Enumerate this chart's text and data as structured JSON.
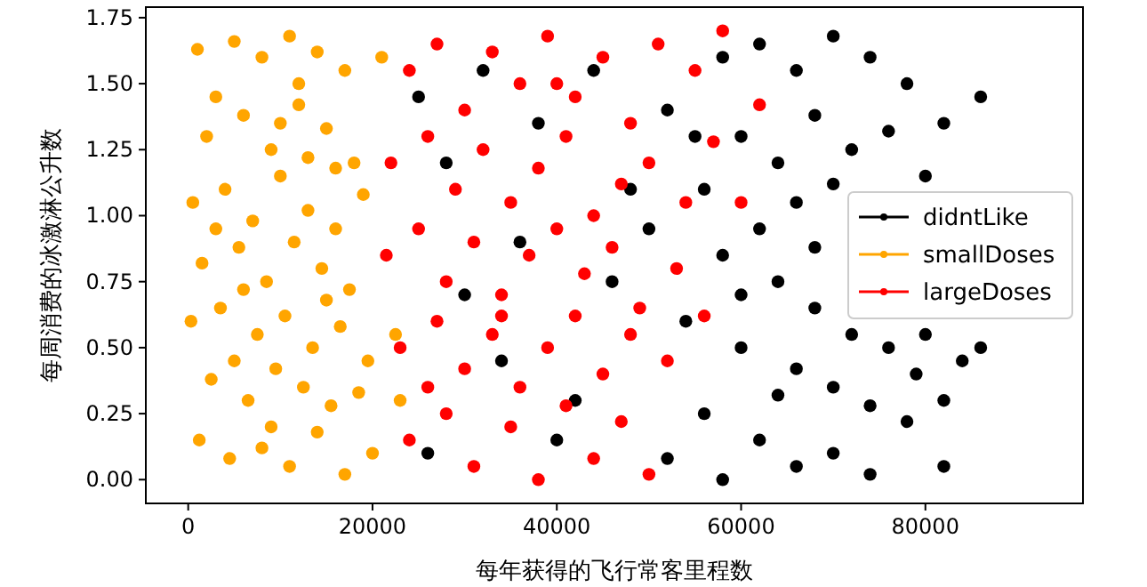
{
  "chart_data": {
    "type": "scatter",
    "xlabel": "每年获得的飞行常客里程数",
    "ylabel": "每周消费的冰激淋公升数",
    "xlim": [
      -4600,
      97100
    ],
    "ylim": [
      -0.09,
      1.79
    ],
    "xticks": [
      0,
      20000,
      40000,
      60000,
      80000
    ],
    "yticks": [
      {
        "value": 0,
        "label": "0.00"
      },
      {
        "value": 0.25,
        "label": "0.25"
      },
      {
        "value": 0.5,
        "label": "0.50"
      },
      {
        "value": 0.75,
        "label": "0.75"
      },
      {
        "value": 1,
        "label": "1.00"
      },
      {
        "value": 1.25,
        "label": "1.25"
      },
      {
        "value": 1.5,
        "label": "1.50"
      },
      {
        "value": 1.75,
        "label": "1.75"
      }
    ],
    "legend": "right",
    "marker": "circle",
    "grid": false,
    "series": [
      {
        "name": "didntLike",
        "color": "#000000",
        "x": [
          25000,
          28000,
          32000,
          38000,
          44000,
          48000,
          52000,
          58000,
          62000,
          66000,
          70000,
          74000,
          78000,
          82000,
          86000,
          60000,
          64000,
          68000,
          72000,
          76000,
          80000,
          56000,
          62000,
          66000,
          70000,
          58000,
          64000,
          68000,
          72000,
          76000,
          80000,
          84000,
          54000,
          60000,
          66000,
          70000,
          74000,
          78000,
          82000,
          56000,
          62000,
          66000,
          70000,
          74000,
          58000,
          52000,
          30000,
          36000,
          42000,
          46000,
          26000,
          34000,
          40000,
          50000,
          55000,
          60000,
          68000,
          64000,
          79000,
          86000,
          82000
        ],
        "values": [
          1.45,
          1.2,
          1.55,
          1.35,
          1.55,
          1.1,
          1.4,
          1.6,
          1.65,
          1.55,
          1.68,
          1.6,
          1.5,
          1.35,
          1.45,
          1.3,
          1.2,
          1.38,
          1.25,
          1.32,
          1.15,
          1.1,
          0.95,
          1.05,
          1.12,
          0.85,
          0.75,
          0.88,
          0.55,
          0.5,
          0.55,
          0.45,
          0.6,
          0.5,
          0.42,
          0.35,
          0.28,
          0.22,
          0.3,
          0.25,
          0.15,
          0.05,
          0.1,
          0.02,
          0.0,
          0.08,
          0.7,
          0.9,
          0.3,
          0.75,
          0.1,
          0.45,
          0.15,
          0.95,
          1.3,
          0.7,
          0.65,
          0.32,
          0.4,
          0.5,
          0.05
        ]
      },
      {
        "name": "smallDoses",
        "color": "#ffa500",
        "x": [
          1000,
          3000,
          5000,
          8000,
          11000,
          14000,
          17000,
          2000,
          6000,
          9000,
          12000,
          15000,
          18000,
          500,
          4000,
          7000,
          10000,
          13000,
          16000,
          19000,
          1500,
          5500,
          8500,
          11500,
          14500,
          17500,
          300,
          3500,
          7500,
          10500,
          13500,
          16500,
          19500,
          2500,
          6500,
          9500,
          12500,
          15500,
          18500,
          1200,
          4500,
          8000,
          11000,
          14000,
          17000,
          20000,
          6000,
          12000,
          3000,
          16000,
          9000,
          21000,
          22500,
          23000,
          10000,
          5000,
          15000,
          13000
        ],
        "values": [
          1.63,
          1.45,
          1.66,
          1.6,
          1.68,
          1.62,
          1.55,
          1.3,
          1.38,
          1.25,
          1.42,
          1.33,
          1.2,
          1.05,
          1.1,
          0.98,
          1.15,
          1.02,
          0.95,
          1.08,
          0.82,
          0.88,
          0.75,
          0.9,
          0.8,
          0.72,
          0.6,
          0.65,
          0.55,
          0.62,
          0.5,
          0.58,
          0.45,
          0.38,
          0.3,
          0.42,
          0.35,
          0.28,
          0.33,
          0.15,
          0.08,
          0.12,
          0.05,
          0.18,
          0.02,
          0.1,
          0.72,
          1.5,
          0.95,
          1.18,
          0.2,
          1.6,
          0.55,
          0.3,
          1.35,
          0.45,
          0.68,
          1.22
        ]
      },
      {
        "name": "largeDoses",
        "color": "#ff0000",
        "x": [
          24000,
          27000,
          30000,
          33000,
          36000,
          39000,
          42000,
          45000,
          48000,
          51000,
          55000,
          58000,
          22000,
          26000,
          29000,
          32000,
          35000,
          38000,
          41000,
          44000,
          47000,
          50000,
          54000,
          57000,
          21500,
          25000,
          28000,
          31000,
          34000,
          37000,
          40000,
          43000,
          46000,
          49000,
          53000,
          60000,
          23000,
          27000,
          30000,
          33000,
          36000,
          39000,
          42000,
          45000,
          48000,
          52000,
          24000,
          28000,
          31000,
          35000,
          38000,
          41000,
          44000,
          47000,
          50000,
          34000,
          40000,
          26000,
          62000,
          56000
        ],
        "values": [
          1.55,
          1.65,
          1.4,
          1.62,
          1.5,
          1.68,
          1.45,
          1.6,
          1.35,
          1.65,
          1.55,
          1.7,
          1.2,
          1.3,
          1.1,
          1.25,
          1.05,
          1.18,
          1.3,
          1.0,
          1.12,
          1.2,
          1.05,
          1.28,
          0.85,
          0.95,
          0.75,
          0.9,
          0.7,
          0.85,
          0.95,
          0.78,
          0.88,
          0.65,
          0.8,
          1.05,
          0.5,
          0.6,
          0.42,
          0.55,
          0.35,
          0.5,
          0.62,
          0.4,
          0.55,
          0.45,
          0.15,
          0.25,
          0.05,
          0.2,
          0.0,
          0.28,
          0.08,
          0.22,
          0.02,
          0.62,
          1.5,
          0.35,
          1.42,
          0.62
        ]
      }
    ]
  }
}
